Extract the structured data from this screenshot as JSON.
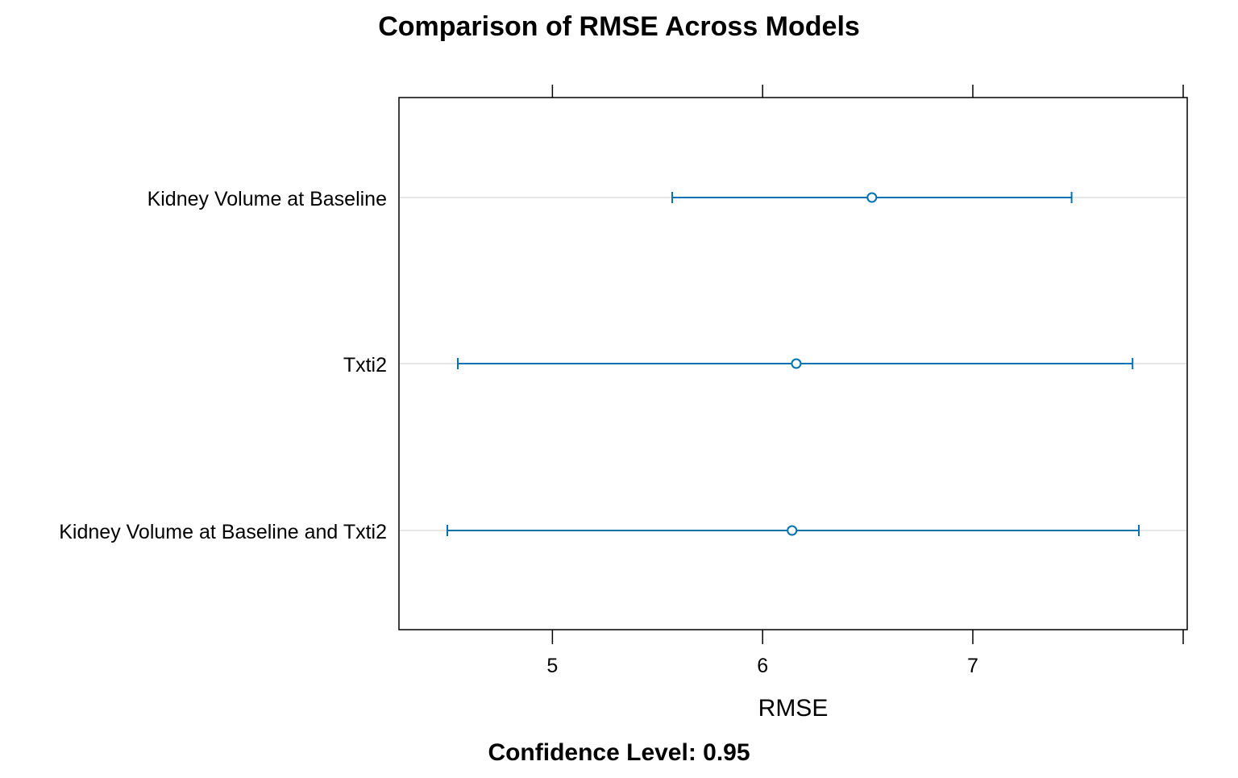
{
  "chart_data": {
    "type": "dotplot",
    "title": "Comparison of RMSE Across Models",
    "xlabel": "RMSE",
    "subtitle": "Confidence Level: 0.95",
    "x_ticks": [
      5,
      6,
      7
    ],
    "x_tick_labels": [
      "5",
      "6",
      "7"
    ],
    "xlim": [
      4.27,
      8.02
    ],
    "grid": "horizontal",
    "categories": [
      "Kidney Volume at Baseline",
      "Txti2",
      "Kidney Volume at Baseline and Txti2"
    ],
    "series": [
      {
        "estimates": [
          6.52,
          6.16,
          6.14
        ],
        "lower": [
          5.57,
          4.55,
          4.5
        ],
        "upper": [
          7.47,
          7.76,
          7.79
        ]
      }
    ],
    "colors": {
      "series": "#0072b2",
      "grid": "#e6e6e6",
      "axis": "#000000",
      "text": "#000000"
    }
  }
}
